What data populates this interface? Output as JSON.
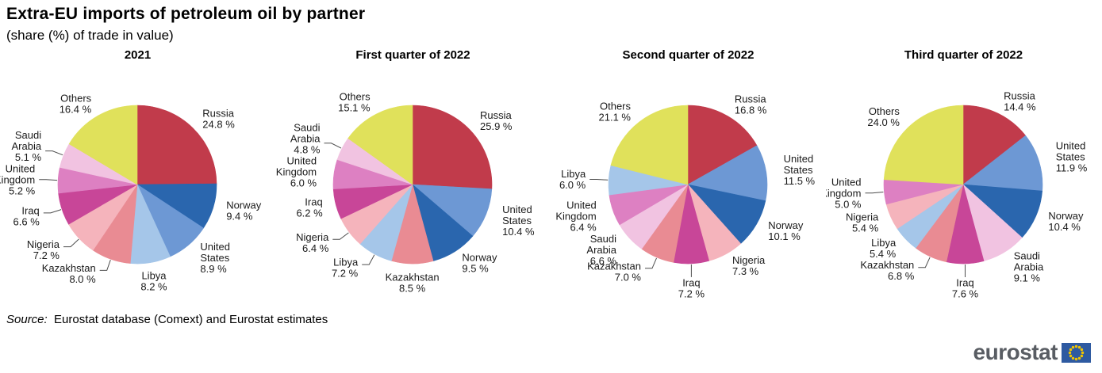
{
  "header": {
    "title": "Extra-EU imports of petroleum oil by partner",
    "subtitle": "(share (%) of trade in value)"
  },
  "source": {
    "prefix": "Source:",
    "text": "Eurostat database (Comext) and Eurostat estimates"
  },
  "logo": {
    "brand": "eurostat",
    "brand_color": "#595d63",
    "flag_bg": "#2e5aa1",
    "flag_stars": "#f3c500"
  },
  "palette": {
    "Russia": "#c13b4b",
    "United States": "#6d98d4",
    "Norway": "#2a66ae",
    "Libya": "#a5c6e9",
    "Kazakhstan": "#e98b93",
    "Nigeria": "#f5b4bc",
    "Iraq": "#c84698",
    "United Kingdom": "#dd80c2",
    "Saudi Arabia": "#f1c3e1",
    "Others": "#e0e15b"
  },
  "chart_data": [
    {
      "type": "pie",
      "title": "2021",
      "value_suffix": " %",
      "start_angle_deg": 0,
      "direction": "clockwise",
      "slices": [
        {
          "label": "Russia",
          "value": 24.8,
          "color": "#c13b4b",
          "leader": false
        },
        {
          "label": "Norway",
          "value": 9.4,
          "color": "#2a66ae",
          "leader": false
        },
        {
          "label": "United States",
          "value": 8.9,
          "color": "#6d98d4",
          "leader": false
        },
        {
          "label": "Libya",
          "value": 8.2,
          "color": "#a5c6e9",
          "leader": false
        },
        {
          "label": "Kazakhstan",
          "value": 8.0,
          "color": "#e98b93",
          "leader": true
        },
        {
          "label": "Nigeria",
          "value": 7.2,
          "color": "#f5b4bc",
          "leader": true
        },
        {
          "label": "Iraq",
          "value": 6.6,
          "color": "#c84698",
          "leader": true
        },
        {
          "label": "United Kingdom",
          "value": 5.2,
          "color": "#dd80c2",
          "leader": true
        },
        {
          "label": "Saudi Arabia",
          "value": 5.1,
          "color": "#f1c3e1",
          "leader": true
        },
        {
          "label": "Others",
          "value": 16.4,
          "color": "#e0e15b",
          "leader": false
        }
      ]
    },
    {
      "type": "pie",
      "title": "First quarter of 2022",
      "value_suffix": " %",
      "start_angle_deg": 0,
      "direction": "clockwise",
      "slices": [
        {
          "label": "Russia",
          "value": 25.9,
          "color": "#c13b4b",
          "leader": false
        },
        {
          "label": "United States",
          "value": 10.4,
          "color": "#6d98d4",
          "leader": false
        },
        {
          "label": "Norway",
          "value": 9.5,
          "color": "#2a66ae",
          "leader": false
        },
        {
          "label": "Kazakhstan",
          "value": 8.5,
          "color": "#e98b93",
          "leader": false
        },
        {
          "label": "Libya",
          "value": 7.2,
          "color": "#a5c6e9",
          "leader": true
        },
        {
          "label": "Nigeria",
          "value": 6.4,
          "color": "#f5b4bc",
          "leader": true
        },
        {
          "label": "Iraq",
          "value": 6.2,
          "color": "#c84698",
          "leader": false
        },
        {
          "label": "United Kingdom",
          "value": 6.0,
          "color": "#dd80c2",
          "leader": false
        },
        {
          "label": "Saudi Arabia",
          "value": 4.8,
          "color": "#f1c3e1",
          "leader": true
        },
        {
          "label": "Others",
          "value": 15.1,
          "color": "#e0e15b",
          "leader": false
        }
      ]
    },
    {
      "type": "pie",
      "title": "Second quarter of 2022",
      "value_suffix": " %",
      "start_angle_deg": 0,
      "direction": "clockwise",
      "slices": [
        {
          "label": "Russia",
          "value": 16.8,
          "color": "#c13b4b",
          "leader": false
        },
        {
          "label": "United States",
          "value": 11.5,
          "color": "#6d98d4",
          "leader": false
        },
        {
          "label": "Norway",
          "value": 10.1,
          "color": "#2a66ae",
          "leader": false
        },
        {
          "label": "Nigeria",
          "value": 7.3,
          "color": "#f5b4bc",
          "leader": false
        },
        {
          "label": "Iraq",
          "value": 7.2,
          "color": "#c84698",
          "leader": true
        },
        {
          "label": "Kazakhstan",
          "value": 7.0,
          "color": "#e98b93",
          "leader": true
        },
        {
          "label": "Saudi Arabia",
          "value": 6.6,
          "color": "#f1c3e1",
          "leader": false
        },
        {
          "label": "United Kingdom",
          "value": 6.4,
          "color": "#dd80c2",
          "leader": false
        },
        {
          "label": "Libya",
          "value": 6.0,
          "color": "#a5c6e9",
          "leader": true
        },
        {
          "label": "Others",
          "value": 21.1,
          "color": "#e0e15b",
          "leader": false
        }
      ]
    },
    {
      "type": "pie",
      "title": "Third quarter of 2022",
      "value_suffix": " %",
      "start_angle_deg": 0,
      "direction": "clockwise",
      "slices": [
        {
          "label": "Russia",
          "value": 14.4,
          "color": "#c13b4b",
          "leader": false
        },
        {
          "label": "United States",
          "value": 11.9,
          "color": "#6d98d4",
          "leader": false
        },
        {
          "label": "Norway",
          "value": 10.4,
          "color": "#2a66ae",
          "leader": false
        },
        {
          "label": "Saudi Arabia",
          "value": 9.1,
          "color": "#f1c3e1",
          "leader": false
        },
        {
          "label": "Iraq",
          "value": 7.6,
          "color": "#c84698",
          "leader": true
        },
        {
          "label": "Kazakhstan",
          "value": 6.8,
          "color": "#e98b93",
          "leader": true
        },
        {
          "label": "Libya",
          "value": 5.4,
          "color": "#a5c6e9",
          "leader": false
        },
        {
          "label": "Nigeria",
          "value": 5.4,
          "color": "#f5b4bc",
          "leader": false
        },
        {
          "label": "United Kingdom",
          "value": 5.0,
          "color": "#dd80c2",
          "leader": true
        },
        {
          "label": "Others",
          "value": 24.0,
          "color": "#e0e15b",
          "leader": false
        }
      ]
    }
  ]
}
